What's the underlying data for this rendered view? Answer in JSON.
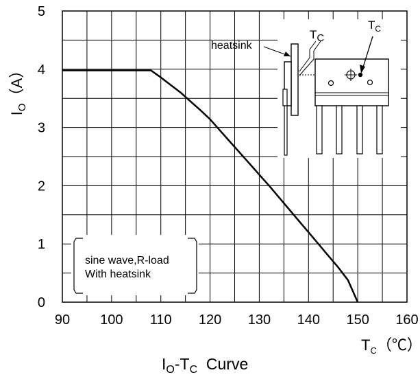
{
  "chart_data": {
    "type": "line",
    "title": "Io-Tc  Curve",
    "title_parts": {
      "i": "I",
      "o": "O",
      "dash_t": "-T",
      "c": "C",
      "rest": "  Curve"
    },
    "xlabel_parts": {
      "t": "T",
      "c": "C",
      "unit": "（℃）"
    },
    "ylabel_parts": {
      "i": "I",
      "o": "O",
      "unit": "（A）"
    },
    "xlim": [
      90,
      160
    ],
    "ylim": [
      0,
      5
    ],
    "x_ticks": [
      "90",
      "100",
      "110",
      "120",
      "130",
      "140",
      "150",
      "160"
    ],
    "y_ticks": [
      "0",
      "1",
      "2",
      "3",
      "4",
      "5"
    ],
    "grid": true,
    "series": [
      {
        "x": [
          90,
          108,
          110,
          112,
          114,
          116,
          118,
          120,
          122,
          124,
          126,
          128,
          130,
          132,
          134,
          136,
          138,
          140,
          142,
          144,
          146,
          148,
          150
        ],
        "y": [
          3.98,
          3.98,
          3.86,
          3.73,
          3.6,
          3.45,
          3.3,
          3.14,
          2.95,
          2.76,
          2.57,
          2.38,
          2.19,
          2.0,
          1.8,
          1.6,
          1.4,
          1.2,
          1.0,
          0.8,
          0.6,
          0.38,
          0.0
        ]
      }
    ],
    "annotations": {
      "condition_line1": "sine wave,R-load",
      "condition_line2": "With heatsink",
      "heatsink_label": "heatsink",
      "tc_label_1": {
        "t": "T",
        "c": "C"
      },
      "tc_label_2": {
        "t": "T",
        "c": "C"
      }
    }
  }
}
